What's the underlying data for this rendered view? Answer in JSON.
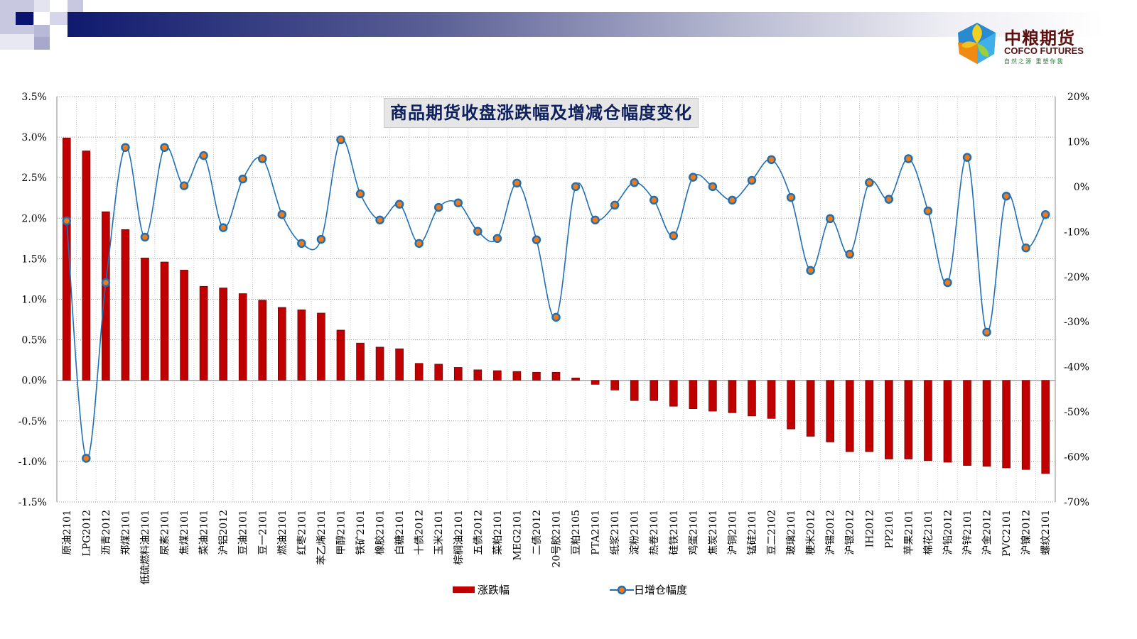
{
  "header": {
    "logo": {
      "cn": "中粮期货",
      "en": "COFCO FUTURES",
      "tagline": "自然之源 重塑你我"
    },
    "colors": {
      "navy": "#101a6e"
    }
  },
  "chart_data": {
    "type": "bar+line",
    "title": "商品期货收盘涨跌幅及增减仓幅度变化",
    "categories": [
      "原油2101",
      "LPG2012",
      "沥青2012",
      "郑煤2101",
      "低硫燃料油2101",
      "尿素2101",
      "焦煤2101",
      "菜油2101",
      "沪铝2012",
      "豆油2101",
      "豆一2101",
      "燃油2101",
      "红枣2101",
      "苯乙烯2101",
      "甲醇2101",
      "铁矿2101",
      "橡胶2101",
      "白糖2101",
      "十债2012",
      "玉米2101",
      "棕榈油2101",
      "五债2012",
      "菜粕2101",
      "MEG2101",
      "二债2012",
      "20号胶2101",
      "豆粕2105",
      "PTA2101",
      "纸浆2101",
      "淀粉2101",
      "热卷2101",
      "硅铁2101",
      "鸡蛋2101",
      "焦炭2101",
      "沪铜2101",
      "锰硅2101",
      "豆二2102",
      "玻璃2101",
      "粳米2012",
      "沪锡2012",
      "沪银2012",
      "IH2012",
      "PP2101",
      "苹果2101",
      "棉花2101",
      "沪铅2012",
      "沪锌2101",
      "沪金2012",
      "PVC2101",
      "沪镍2012",
      "螺纹2101"
    ],
    "series": [
      {
        "name": "涨跌幅",
        "type": "bar",
        "axis": "left",
        "unit": "%",
        "color": "#c00000",
        "values": [
          2.99,
          2.83,
          2.08,
          1.86,
          1.51,
          1.46,
          1.36,
          1.16,
          1.14,
          1.07,
          0.99,
          0.9,
          0.87,
          0.83,
          0.62,
          0.46,
          0.41,
          0.39,
          0.21,
          0.2,
          0.16,
          0.13,
          0.12,
          0.11,
          0.1,
          0.1,
          0.03,
          -0.05,
          -0.12,
          -0.25,
          -0.25,
          -0.32,
          -0.35,
          -0.38,
          -0.4,
          -0.44,
          -0.47,
          -0.6,
          -0.69,
          -0.76,
          -0.88,
          -0.88,
          -0.97,
          -0.97,
          -0.99,
          -1.01,
          -1.05,
          -1.06,
          -1.08,
          -1.1,
          -1.15
        ]
      },
      {
        "name": "日增仓幅度",
        "type": "line",
        "axis": "right",
        "unit": "%",
        "color": "#1f6fb4",
        "marker_color": "#f07a1a",
        "values": [
          -7.6,
          -60.3,
          -21.3,
          8.7,
          -11.2,
          8.7,
          0.2,
          6.9,
          -9.1,
          1.7,
          6.2,
          -6.2,
          -12.6,
          -11.7,
          10.4,
          -1.6,
          -7.4,
          -3.9,
          -12.6,
          -4.6,
          -3.6,
          -9.9,
          -11.5,
          0.8,
          -11.8,
          -29.0,
          0.0,
          -7.4,
          -4.1,
          0.9,
          -3.0,
          -10.9,
          2.1,
          0.0,
          -3.0,
          1.4,
          6.0,
          -2.4,
          -18.6,
          -7.1,
          -15.0,
          0.9,
          -2.8,
          6.2,
          -5.4,
          -21.3,
          6.5,
          -32.3,
          -2.1,
          -13.6,
          -6.2
        ]
      }
    ],
    "left_axis": {
      "ylim": [
        -1.5,
        3.5
      ],
      "ticks": [
        3.5,
        3.0,
        2.5,
        2.0,
        1.5,
        1.0,
        0.5,
        0.0,
        -0.5,
        -1.0,
        -1.5
      ],
      "tick_labels": [
        "3.5%",
        "3.0%",
        "2.5%",
        "2.0%",
        "1.5%",
        "1.0%",
        "0.5%",
        "0.0%",
        "-0.5%",
        "-1.0%",
        "-1.5%"
      ]
    },
    "right_axis": {
      "ylim": [
        -70,
        20
      ],
      "ticks": [
        20,
        10,
        0,
        -10,
        -20,
        -30,
        -40,
        -50,
        -60,
        -70
      ],
      "tick_labels": [
        "20%",
        "10%",
        "0%",
        "-10%",
        "-20%",
        "-30%",
        "-40%",
        "-50%",
        "-60%",
        "-70%"
      ]
    },
    "grid": true,
    "legend_position": "bottom"
  }
}
